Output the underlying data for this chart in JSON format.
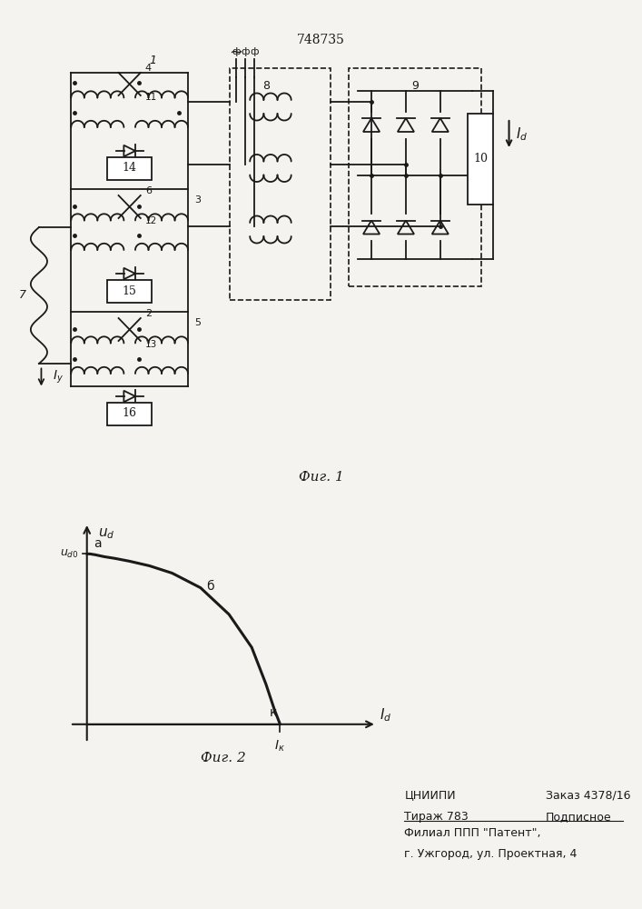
{
  "patent_number": "748735",
  "fig1_caption": "Фиг. 1",
  "fig2_caption": "Фиг. 2",
  "background_color": "#f5f3ef",
  "line_color": "#1a1a1a",
  "curve_x": [
    0.0,
    0.01,
    0.03,
    0.06,
    0.1,
    0.15,
    0.22,
    0.3,
    0.4,
    0.5,
    0.58,
    0.63,
    0.66,
    0.675,
    0.68
  ],
  "curve_y": [
    0.93,
    0.93,
    0.925,
    0.915,
    0.905,
    0.89,
    0.865,
    0.825,
    0.745,
    0.6,
    0.42,
    0.22,
    0.08,
    0.02,
    0.0
  ]
}
